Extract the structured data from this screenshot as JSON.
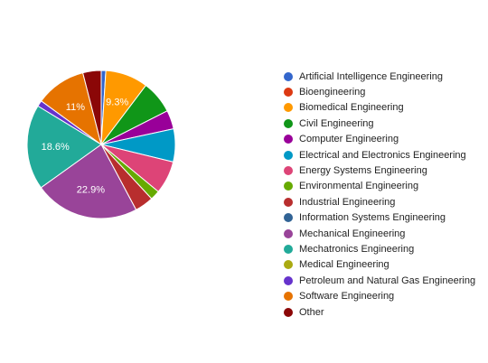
{
  "chart_data": {
    "type": "pie",
    "slices": [
      {
        "label": "Artificial Intelligence Engineering",
        "value": 1.0,
        "color": "#3366cc"
      },
      {
        "label": "Bioengineering",
        "value": 0.0,
        "color": "#dc3912"
      },
      {
        "label": "Biomedical Engineering",
        "value": 9.3,
        "color": "#ff9900",
        "data_label": "9.3%"
      },
      {
        "label": "Civil Engineering",
        "value": 7.2,
        "color": "#109618"
      },
      {
        "label": "Computer Engineering",
        "value": 4.1,
        "color": "#990099"
      },
      {
        "label": "Electrical and Electronics Engineering",
        "value": 7.2,
        "color": "#0099c6"
      },
      {
        "label": "Energy Systems Engineering",
        "value": 7.2,
        "color": "#dd4477"
      },
      {
        "label": "Environmental Engineering",
        "value": 2.1,
        "color": "#66aa00"
      },
      {
        "label": "Industrial Engineering",
        "value": 4.1,
        "color": "#b82e2e"
      },
      {
        "label": "Information Systems Engineering",
        "value": 0.0,
        "color": "#316395"
      },
      {
        "label": "Mechanical Engineering",
        "value": 22.9,
        "color": "#994499",
        "data_label": "22.9%"
      },
      {
        "label": "Mechatronics Engineering",
        "value": 18.6,
        "color": "#22aa99",
        "data_label": "18.6%"
      },
      {
        "label": "Medical Engineering",
        "value": 0.0,
        "color": "#aaaa11"
      },
      {
        "label": "Petroleum and Natural Gas Engineering",
        "value": 1.3,
        "color": "#6633cc"
      },
      {
        "label": "Software Engineering",
        "value": 11.0,
        "color": "#e67300",
        "data_label": "11%"
      },
      {
        "label": "Other",
        "value": 4.0,
        "color": "#8b0707"
      }
    ],
    "legend_position": "right"
  }
}
